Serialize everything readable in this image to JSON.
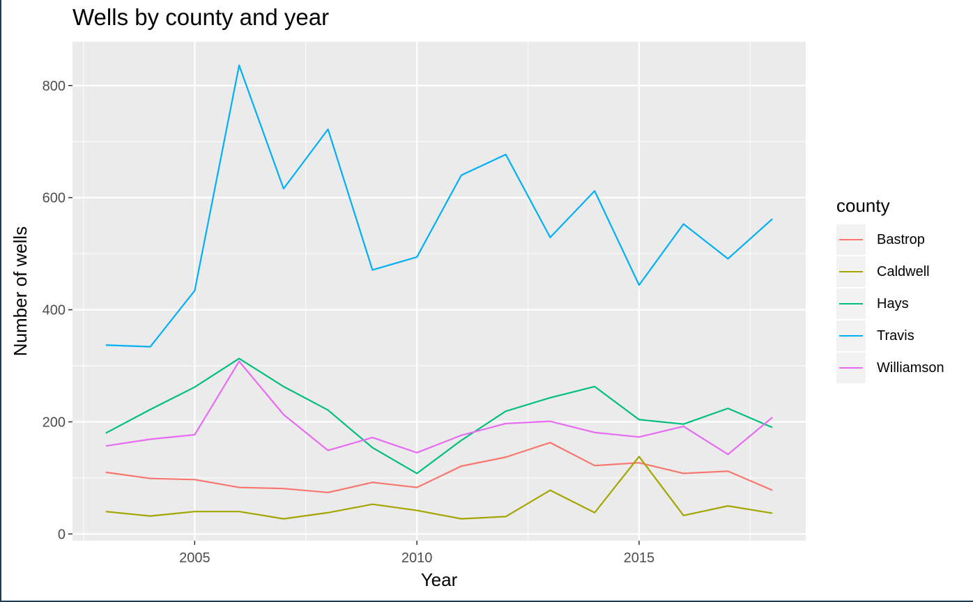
{
  "chart_data": {
    "type": "line",
    "title": "Wells by county and year",
    "xlabel": "Year",
    "ylabel": "Number of wells",
    "x": [
      2003,
      2004,
      2005,
      2006,
      2007,
      2008,
      2009,
      2010,
      2011,
      2012,
      2013,
      2014,
      2015,
      2016,
      2017,
      2018
    ],
    "xlim": [
      2002.25,
      2018.75
    ],
    "ylim": [
      -12,
      878
    ],
    "x_ticks": [
      2005,
      2010,
      2015
    ],
    "y_ticks": [
      0,
      200,
      400,
      600,
      800
    ],
    "grid": true,
    "legend_title": "county",
    "legend_position": "right",
    "series": [
      {
        "name": "Bastrop",
        "color": "#F8766D",
        "values": [
          110,
          99,
          97,
          83,
          81,
          74,
          92,
          83,
          121,
          137,
          163,
          122,
          127,
          108,
          112,
          78
        ]
      },
      {
        "name": "Caldwell",
        "color": "#A3A500",
        "values": [
          40,
          32,
          40,
          40,
          27,
          38,
          53,
          42,
          27,
          31,
          78,
          38,
          138,
          33,
          50,
          37
        ]
      },
      {
        "name": "Hays",
        "color": "#00BF7D",
        "values": [
          180,
          222,
          262,
          313,
          263,
          221,
          154,
          108,
          167,
          219,
          243,
          263,
          204,
          196,
          224,
          190
        ]
      },
      {
        "name": "Travis",
        "color": "#00B0F6",
        "values": [
          337,
          334,
          434,
          836,
          616,
          722,
          471,
          494,
          640,
          677,
          529,
          612,
          444,
          553,
          491,
          562
        ]
      },
      {
        "name": "Williamson",
        "color": "#E76BF3",
        "values": [
          157,
          169,
          177,
          308,
          213,
          149,
          172,
          145,
          176,
          197,
          201,
          181,
          173,
          192,
          142,
          208
        ]
      }
    ]
  }
}
